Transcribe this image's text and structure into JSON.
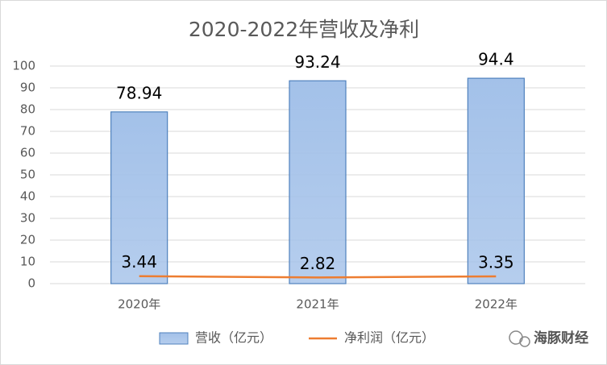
{
  "chart_data": {
    "type": "bar_line",
    "title": "2020-2022年营收及净利",
    "categories": [
      "2020年",
      "2021年",
      "2022年"
    ],
    "series": [
      {
        "name": "营收（亿元）",
        "type": "bar",
        "color": "#a3c1e9",
        "values": [
          78.94,
          93.24,
          94.4
        ]
      },
      {
        "name": "净利润（亿元）",
        "type": "line",
        "color": "#ed7d31",
        "values": [
          3.44,
          2.82,
          3.35
        ]
      }
    ],
    "ylim": [
      0,
      100
    ],
    "yticks": [
      0,
      10,
      20,
      30,
      40,
      50,
      60,
      70,
      80,
      90,
      100
    ],
    "grid": true,
    "legend": "bottom",
    "watermark": "海豚财经"
  }
}
